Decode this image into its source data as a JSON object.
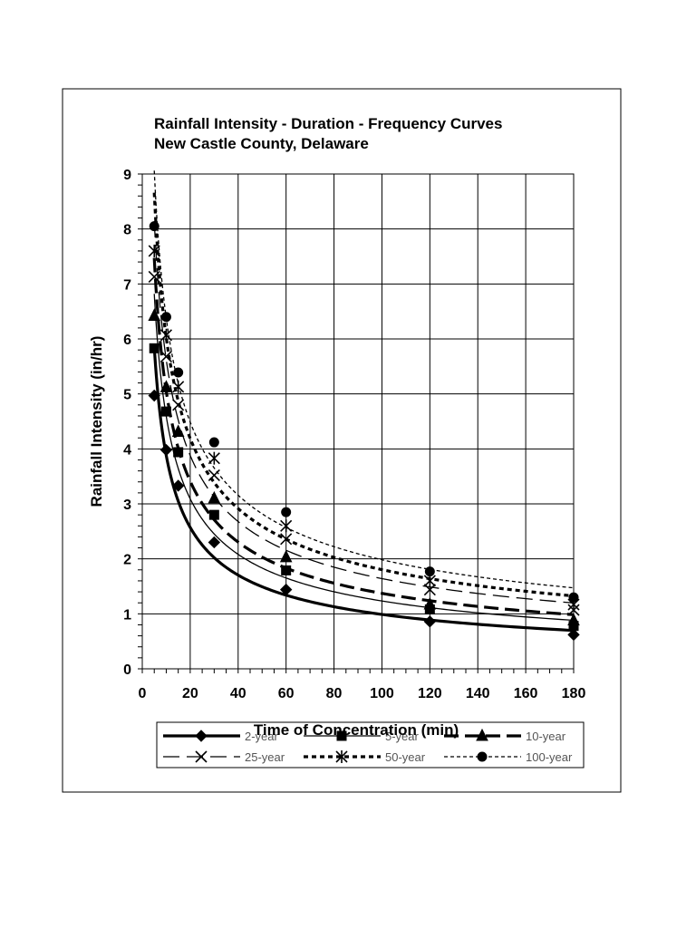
{
  "chart_data": {
    "type": "line",
    "title": "Rainfall Intensity - Duration - Frequency Curves",
    "subtitle": "New Castle County, Delaware",
    "xlabel": "Time of Concentration (min)",
    "ylabel": "Rainfall Intensity (in/hr)",
    "xlim": [
      0,
      180
    ],
    "ylim": [
      0,
      9
    ],
    "x_ticks": [
      "0",
      "20",
      "40",
      "60",
      "80",
      "100",
      "120",
      "140",
      "160",
      "180"
    ],
    "y_ticks": [
      "0",
      "1",
      "2",
      "3",
      "4",
      "5",
      "6",
      "7",
      "8",
      "9"
    ],
    "grid": true,
    "legend_position": "bottom",
    "x": [
      5,
      10,
      15,
      30,
      60,
      120,
      180
    ],
    "series": [
      {
        "name": "2-year",
        "marker": "diamond",
        "dash": "solid",
        "width": 3.2,
        "values": [
          4.97,
          3.98,
          3.33,
          2.3,
          1.44,
          0.86,
          0.62
        ]
      },
      {
        "name": "5-year",
        "marker": "square",
        "dash": "solid",
        "width": 1.3,
        "values": [
          5.83,
          4.68,
          3.94,
          2.8,
          1.79,
          1.08,
          0.78
        ]
      },
      {
        "name": "10-year",
        "marker": "triangle",
        "dash": "long-dash",
        "width": 3.2,
        "values": [
          6.42,
          5.12,
          4.31,
          3.1,
          2.03,
          1.17,
          0.88
        ]
      },
      {
        "name": "25-year",
        "marker": "x",
        "dash": "dash",
        "width": 1.3,
        "values": [
          7.13,
          5.68,
          4.8,
          3.52,
          2.36,
          1.44,
          1.07
        ]
      },
      {
        "name": "50-year",
        "marker": "star",
        "dash": "short-dash",
        "width": 3.2,
        "values": [
          7.6,
          6.07,
          5.13,
          3.83,
          2.6,
          1.6,
          1.17
        ]
      },
      {
        "name": "100-year",
        "marker": "circle",
        "dash": "dot",
        "width": 1.3,
        "values": [
          8.05,
          6.4,
          5.39,
          4.12,
          2.85,
          1.77,
          1.3
        ]
      }
    ]
  }
}
